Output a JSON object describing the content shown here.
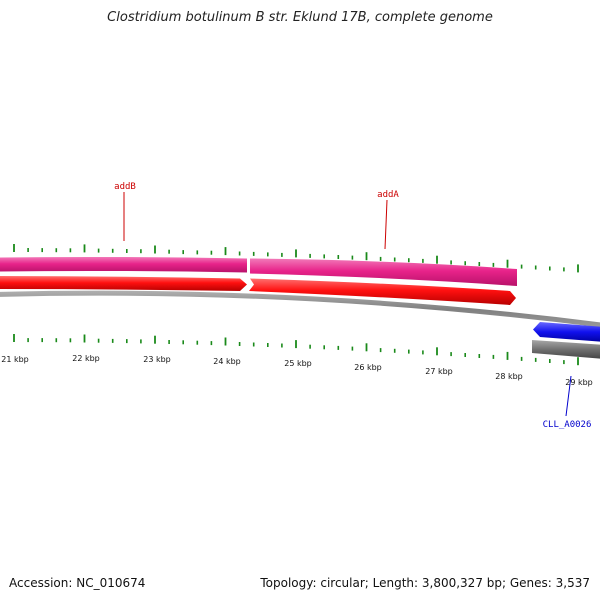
{
  "title": "Clostridium botulinum B str. Eklund 17B, complete genome",
  "footer": {
    "accession": "Accession: NC_010674",
    "summary": "Topology: circular; Length: 3,800,327 bp; Genes: 3,537"
  },
  "colors": {
    "tick": "#1a8a1a",
    "pink_gene": "#e8238a",
    "red_gene": "#ff1010",
    "grey_gene": "#666666",
    "blue_gene": "#1111ee",
    "label_red": "#cc0000",
    "label_blue": "#0000cc"
  },
  "scale_labels": [
    "21 kbp",
    "22 kbp",
    "23 kbp",
    "24 kbp",
    "25 kbp",
    "26 kbp",
    "27 kbp",
    "28 kbp",
    "29 kbp"
  ],
  "gene_labels": [
    {
      "name": "addB",
      "color": "label_red"
    },
    {
      "name": "addA",
      "color": "label_red"
    },
    {
      "name": "CLL_A0026",
      "color": "label_blue"
    }
  ]
}
